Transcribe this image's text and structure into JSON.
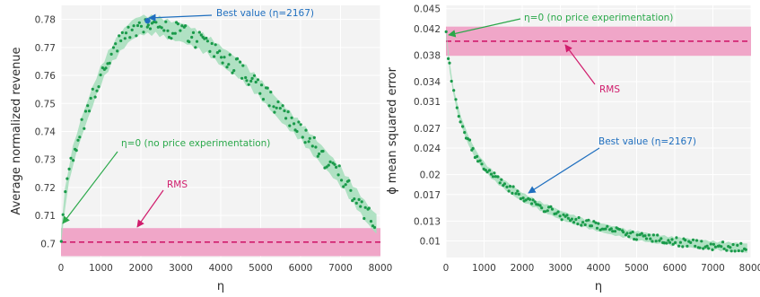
{
  "chart_data": [
    {
      "type": "scatter",
      "xlabel": "η",
      "ylabel": "Average normalized revenue",
      "xlim": [
        0,
        8000
      ],
      "ylim": [
        0.695,
        0.785
      ],
      "xticks": [
        "0",
        "1000",
        "2000",
        "3000",
        "4000",
        "5000",
        "6000",
        "7000",
        "8000"
      ],
      "xtick_values": [
        0,
        1000,
        2000,
        3000,
        4000,
        5000,
        6000,
        7000,
        8000
      ],
      "yticks": [
        "0.7",
        "0.71",
        "0.72",
        "0.73",
        "0.74",
        "0.75",
        "0.76",
        "0.77",
        "0.78"
      ],
      "ytick_values": [
        0.7,
        0.71,
        0.72,
        0.73,
        0.74,
        0.75,
        0.76,
        0.77,
        0.78
      ],
      "grid": true,
      "colors": {
        "points": "#1a9a4a",
        "band": "#a8dfbe",
        "best": "#1f6fbf",
        "eta0": "#2aa84a",
        "rms": "#d01c6c",
        "rms_band": "#f0a6c8"
      },
      "curve": {
        "x": [
          0,
          100,
          250,
          500,
          750,
          1000,
          1250,
          1500,
          1750,
          2000,
          2250,
          2500,
          2750,
          3000,
          3250,
          3500,
          3750,
          4000,
          4500,
          5000,
          5500,
          6000,
          6500,
          7000,
          7250,
          7500,
          7750,
          7900
        ],
        "y": [
          0.702,
          0.716,
          0.729,
          0.741,
          0.751,
          0.76,
          0.767,
          0.772,
          0.776,
          0.778,
          0.778,
          0.7775,
          0.776,
          0.7755,
          0.774,
          0.772,
          0.77,
          0.767,
          0.762,
          0.755,
          0.747,
          0.74,
          0.732,
          0.724,
          0.719,
          0.714,
          0.709,
          0.707
        ],
        "spread": 0.003
      },
      "rms": {
        "value": 0.7005,
        "band": [
          0.6955,
          0.7055
        ]
      },
      "best_point": {
        "x": 2167,
        "y": 0.7795
      },
      "annotations": [
        {
          "id": "best",
          "text": "Best value (η=2167)"
        },
        {
          "id": "eta0",
          "text": "η=0 (no price experimentation)"
        },
        {
          "id": "rms",
          "text": "RMS"
        }
      ]
    },
    {
      "type": "scatter",
      "xlabel": "η",
      "ylabel": "ϕ mean squared error",
      "xlim": [
        0,
        8000
      ],
      "ylim": [
        0.0075,
        0.0455
      ],
      "xticks": [
        "0",
        "1000",
        "2000",
        "3000",
        "4000",
        "5000",
        "6000",
        "7000",
        "8000"
      ],
      "xtick_values": [
        0,
        1000,
        2000,
        3000,
        4000,
        5000,
        6000,
        7000,
        8000
      ],
      "yticks": [
        "0.01",
        "0.013",
        "0.017",
        "0.02",
        "0.024",
        "0.027",
        "0.031",
        "0.034",
        "0.038",
        "0.042",
        "0.045"
      ],
      "ytick_values": [
        0.01,
        0.013,
        0.017,
        0.02,
        0.024,
        0.027,
        0.031,
        0.034,
        0.038,
        0.042,
        0.045
      ],
      "grid": true,
      "colors": {
        "points": "#1a9a4a",
        "band": "#a8dfbe",
        "best": "#1f6fbf",
        "eta0": "#2aa84a",
        "rms": "#d01c6c",
        "rms_band": "#f0a6c8"
      },
      "curve": {
        "x": [
          0,
          80,
          150,
          250,
          400,
          600,
          800,
          1000,
          1300,
          1600,
          2000,
          2500,
          3000,
          3500,
          4000,
          4500,
          5000,
          5500,
          6000,
          6500,
          7000,
          7500,
          7900
        ],
        "y": [
          0.0415,
          0.037,
          0.034,
          0.031,
          0.028,
          0.025,
          0.0228,
          0.0212,
          0.0195,
          0.0182,
          0.0166,
          0.0152,
          0.0139,
          0.0129,
          0.0121,
          0.0114,
          0.0108,
          0.0103,
          0.0099,
          0.0096,
          0.0093,
          0.0091,
          0.0089
        ],
        "spread": 0.0006
      },
      "rms": {
        "value": 0.0401,
        "band": [
          0.0379,
          0.0423
        ]
      },
      "best_point": {
        "x": 2167,
        "y": 0.0163
      },
      "annotations": [
        {
          "id": "eta0",
          "text": "η=0 (no price experimentation)"
        },
        {
          "id": "rms",
          "text": "RMS"
        },
        {
          "id": "best",
          "text": "Best value (η=2167)"
        }
      ]
    }
  ]
}
